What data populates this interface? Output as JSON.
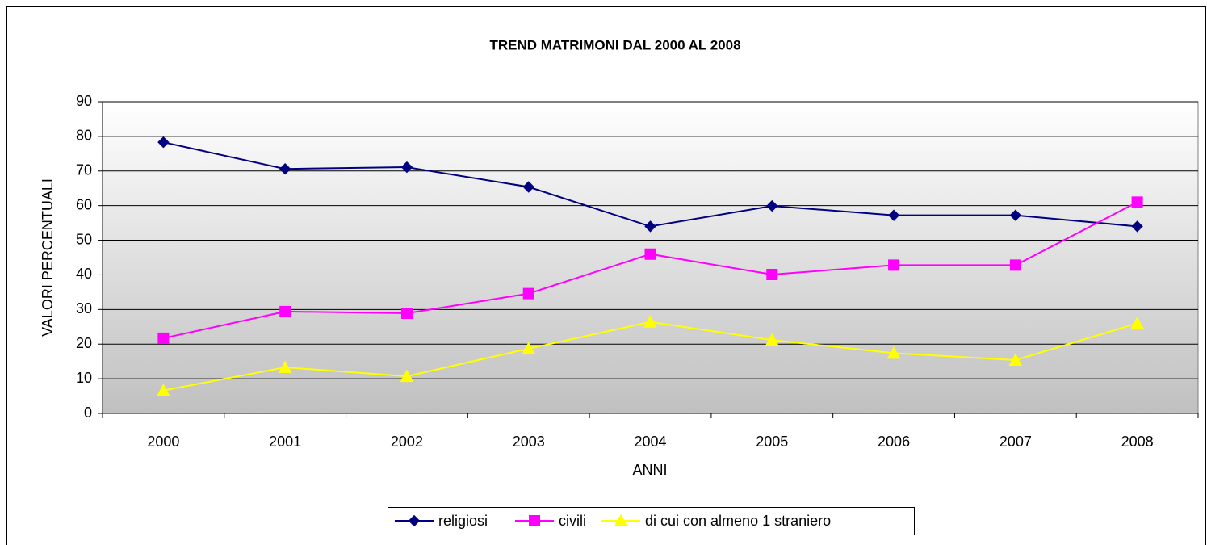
{
  "chart_data": {
    "type": "line",
    "title": "TREND MATRIMONI DAL 2000 AL 2008",
    "x_label": "ANNI",
    "y_label": "VALORI PERCENTUALI",
    "categories": [
      "2000",
      "2001",
      "2002",
      "2003",
      "2004",
      "2005",
      "2006",
      "2007",
      "2008"
    ],
    "series": [
      {
        "name": "religiosi",
        "color": "#000080",
        "marker": "diamond",
        "values": [
          78.3,
          70.6,
          71.1,
          65.4,
          54.0,
          59.9,
          57.2,
          57.2,
          54.0
        ]
      },
      {
        "name": "civili",
        "color": "#ff00ff",
        "marker": "square",
        "values": [
          21.7,
          29.4,
          28.9,
          34.6,
          46.0,
          40.1,
          42.8,
          42.8,
          61.0
        ]
      },
      {
        "name": "di cui con almeno 1 straniero",
        "color": "#ffff00",
        "marker": "triangle",
        "values": [
          6.6,
          13.3,
          10.7,
          18.7,
          26.4,
          21.2,
          17.4,
          15.4,
          26.0
        ]
      }
    ],
    "ylim": [
      0,
      90
    ],
    "yticks": [
      0,
      10,
      20,
      30,
      40,
      50,
      60,
      70,
      80,
      90
    ],
    "grid": true,
    "legend": "bottom"
  }
}
